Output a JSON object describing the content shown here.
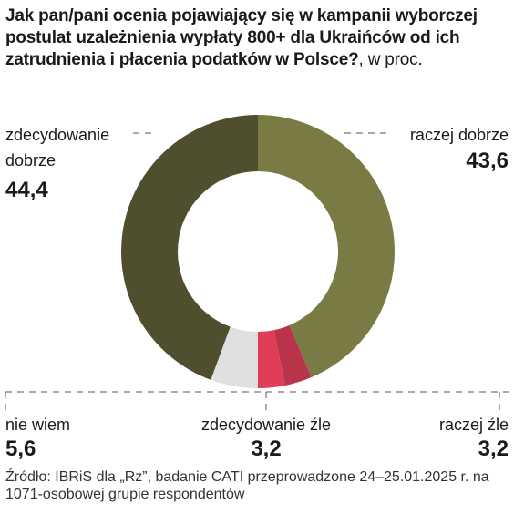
{
  "title": "Jak pan/pani ocenia pojawiający się w kampanii wyborczej postulat uzależnienia wypłaty 800+ dla Ukraińców od ich zatrudnienia i płacenia podatków w Polsce?",
  "unit": ", w proc.",
  "source": "Źródło: IBRiS dla „Rz”, badanie CATI przeprowadzone 24–25.01.2025 r. na 1071-osobowej grupie respondentów",
  "chart_data": {
    "type": "pie",
    "title": "Jak pan/pani ocenia pojawiający się w kampanii wyborczej postulat uzależnienia wypłaty 800+ dla Ukraińców od ich zatrudnienia i płacenia podatków w Polsce?, w proc.",
    "slices": [
      {
        "label": "raczej dobrze",
        "value": 43.6,
        "value_label": "43,6",
        "color": "#7a7a45"
      },
      {
        "label": "raczej źle",
        "value": 3.2,
        "value_label": "3,2",
        "color": "#b7344b"
      },
      {
        "label": "zdecydowanie źle",
        "value": 3.2,
        "value_label": "3,2",
        "color": "#e23d57"
      },
      {
        "label": "nie wiem",
        "value": 5.6,
        "value_label": "5,6",
        "color": "#e0e0e0"
      },
      {
        "label": "zdecydowanie dobrze",
        "value": 44.4,
        "value_label": "44,4",
        "color": "#4f4e2e"
      }
    ]
  }
}
